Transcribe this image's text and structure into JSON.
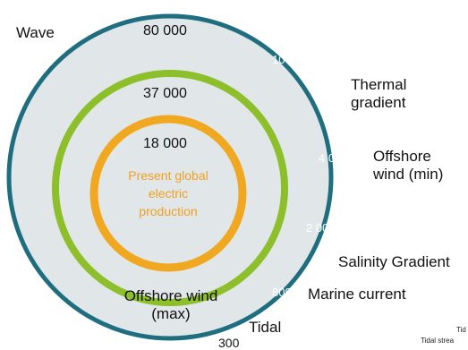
{
  "colors": {
    "outer_fill": "#e1e6e8",
    "outer_ring": "#1e6e80",
    "middle_ring": "#8cbf2a",
    "inner_ring": "#f0a820",
    "center_text": "#f0a020"
  },
  "rings": {
    "outer_value": "80 000",
    "middle_value": "37 000",
    "inner_value": "18 000",
    "center_label_lines": [
      "Present global",
      "electric",
      "production"
    ]
  },
  "sources": {
    "wave": "Wave",
    "thermal_gradient_lines": [
      "Thermal",
      "gradient"
    ],
    "offshore_wind_min_lines": [
      "Offshore",
      "wind (min)"
    ],
    "salinity_gradient": "Salinity Gradient",
    "marine_current": "Marine current",
    "offshore_wind_max_lines": [
      "Offshore wind",
      "(max)"
    ],
    "tidal": "Tidal"
  },
  "values": {
    "thermal": "10 0",
    "offshore_min": "4 0",
    "salinity": "2 00",
    "marine": "800",
    "tidal": "300"
  },
  "footnote": {
    "line1": "Tid",
    "line2": "Tidal strea"
  }
}
